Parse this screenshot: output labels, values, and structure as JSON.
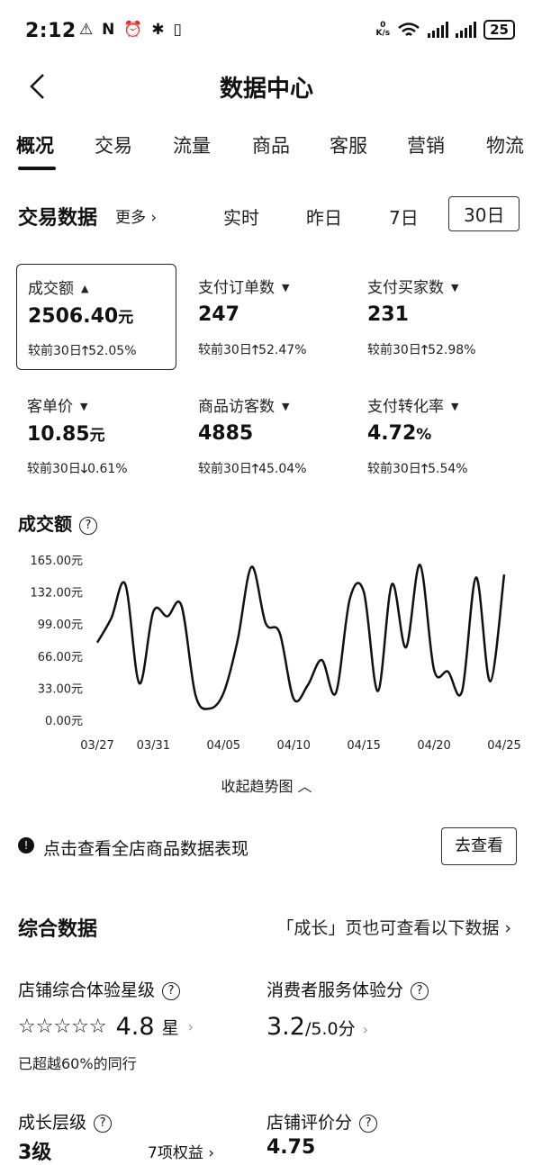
{
  "status_bar": {
    "time": "2:12",
    "left_icons": "⚠ N ⏰ ✱ ▯",
    "speed_top": "0",
    "speed_bottom": "K/s",
    "battery": "25"
  },
  "nav": {
    "title": "数据中心"
  },
  "tabs": [
    "概况",
    "交易",
    "流量",
    "商品",
    "客服",
    "营销",
    "物流"
  ],
  "trade": {
    "title": "交易数据",
    "more": "更多",
    "ranges": [
      "实时",
      "昨日",
      "7日",
      "30日"
    ],
    "active_range": "30日"
  },
  "metrics": [
    {
      "label": "成交额",
      "caret": "▲",
      "value": "2506.40",
      "unit": "元",
      "change": "较前30日",
      "arrow": "🡑",
      "pct": "52.05%"
    },
    {
      "label": "支付订单数",
      "caret": "▼",
      "value": "247",
      "unit": "",
      "change": "较前30日",
      "arrow": "🡑",
      "pct": "52.47%"
    },
    {
      "label": "支付买家数",
      "caret": "▼",
      "value": "231",
      "unit": "",
      "change": "较前30日",
      "arrow": "🡑",
      "pct": "52.98%"
    },
    {
      "label": "客单价",
      "caret": "▼",
      "value": "10.85",
      "unit": "元",
      "change": "较前30日",
      "arrow": "🡓",
      "pct": "0.61%"
    },
    {
      "label": "商品访客数",
      "caret": "▼",
      "value": "4885",
      "unit": "",
      "change": "较前30日",
      "arrow": "🡑",
      "pct": "45.04%"
    },
    {
      "label": "支付转化率",
      "caret": "▼",
      "value": "4.72",
      "unit": "%",
      "change": "较前30日",
      "arrow": "🡑",
      "pct": "5.54%"
    }
  ],
  "chart_section": {
    "title": "成交额",
    "help": "?",
    "collapse": "收起趋势图"
  },
  "chart_data": {
    "type": "line",
    "title": "成交额",
    "y_ticks": [
      "165.00元",
      "132.00元",
      "99.00元",
      "66.00元",
      "33.00元",
      "0.00元"
    ],
    "ylim": [
      0,
      165
    ],
    "x_ticks": [
      "03/27",
      "03/31",
      "04/05",
      "04/10",
      "04/15",
      "04/20",
      "04/25"
    ],
    "x": [
      "03/27",
      "03/28",
      "03/29",
      "03/30",
      "03/31",
      "04/01",
      "04/02",
      "04/03",
      "04/04",
      "04/05",
      "04/06",
      "04/07",
      "04/08",
      "04/09",
      "04/10",
      "04/11",
      "04/12",
      "04/13",
      "04/14",
      "04/15",
      "04/16",
      "04/17",
      "04/18",
      "04/19",
      "04/20",
      "04/21",
      "04/22",
      "04/23",
      "04/24",
      "04/25"
    ],
    "values": [
      80,
      105,
      140,
      38,
      112,
      107,
      118,
      26,
      12,
      28,
      82,
      158,
      100,
      90,
      22,
      36,
      62,
      28,
      125,
      132,
      30,
      140,
      75,
      160,
      52,
      50,
      30,
      147,
      40,
      150
    ],
    "color": "#111111",
    "grid": false
  },
  "store_link": {
    "icon": "!",
    "text": "点击查看全店商品数据表现",
    "button": "去查看"
  },
  "combined": {
    "title": "综合数据",
    "note": "「成长」页也可查看以下数据",
    "experience_label": "店铺综合体验星级",
    "experience_stars": "☆☆☆☆☆",
    "experience_rating": 4.8,
    "experience_score": "4.8",
    "experience_unit": "星",
    "experience_beat": "已超越60%的同行",
    "service_label": "消费者服务体验分",
    "service_score": "3.2",
    "service_total": "/5.0分",
    "growth_label": "成长层级",
    "growth_value": "3级",
    "growth_rights": "7项权益",
    "review_label": "店铺评价分",
    "review_value": "4.75"
  }
}
